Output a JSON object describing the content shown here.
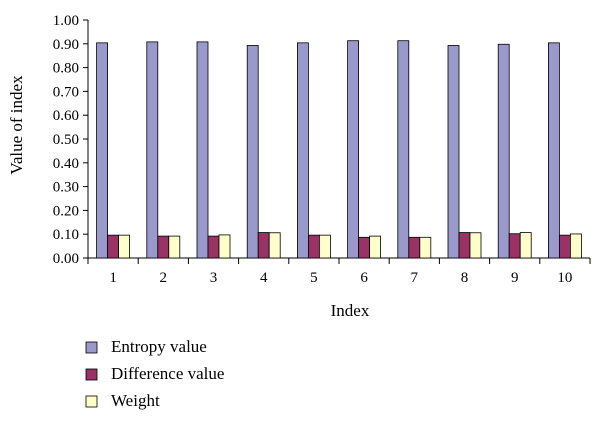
{
  "chart_data": {
    "type": "bar",
    "xlabel": "Index",
    "ylabel": "Value of index",
    "ylim": [
      0,
      1.0
    ],
    "yticks": [
      "0.00",
      "0.10",
      "0.20",
      "0.30",
      "0.40",
      "0.50",
      "0.60",
      "0.70",
      "0.80",
      "0.90",
      "1.00"
    ],
    "categories": [
      "1",
      "2",
      "3",
      "4",
      "5",
      "6",
      "7",
      "8",
      "9",
      "10"
    ],
    "series": [
      {
        "name": "Entropy value",
        "color": "#9999cc",
        "values": [
          0.904,
          0.908,
          0.908,
          0.893,
          0.904,
          0.913,
          0.913,
          0.893,
          0.898,
          0.904
        ]
      },
      {
        "name": "Difference value",
        "color": "#993366",
        "values": [
          0.096,
          0.092,
          0.092,
          0.107,
          0.096,
          0.087,
          0.087,
          0.107,
          0.102,
          0.096
        ]
      },
      {
        "name": "Weight",
        "color": "#ffffcc",
        "values": [
          0.096,
          0.092,
          0.097,
          0.106,
          0.096,
          0.092,
          0.087,
          0.106,
          0.107,
          0.101
        ]
      }
    ],
    "grid": false,
    "legend_position": "bottom-left"
  }
}
